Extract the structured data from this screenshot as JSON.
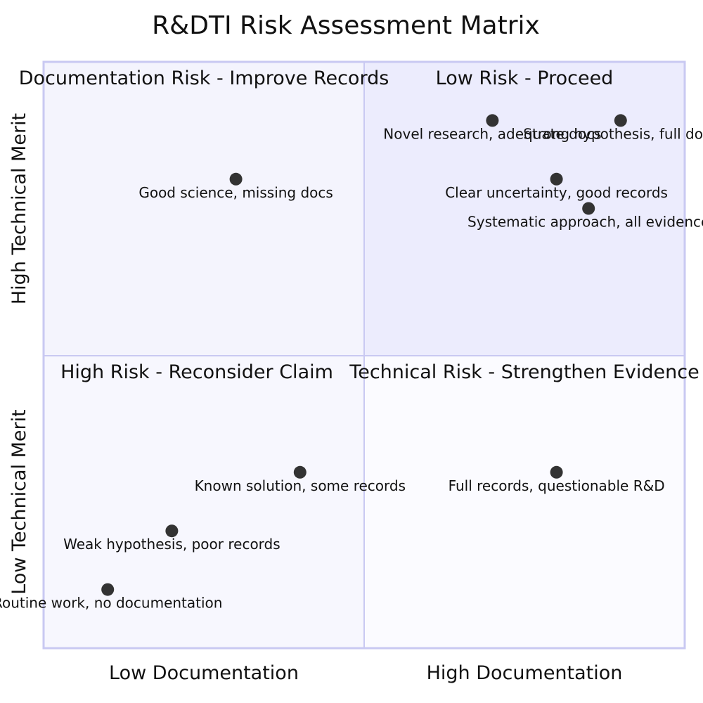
{
  "chart_data": {
    "type": "scatter",
    "title": "R&DTI Risk Assessment Matrix",
    "x_axis": {
      "low_label": "Low Documentation",
      "high_label": "High Documentation",
      "range": [
        0,
        1
      ]
    },
    "y_axis": {
      "low_label": "Low Technical Merit",
      "high_label": "High Technical Merit",
      "range": [
        0,
        1
      ]
    },
    "quadrants": {
      "top_left": {
        "label": "Documentation Risk - Improve Records",
        "color": "#f4f4fd"
      },
      "top_right": {
        "label": "Low Risk - Proceed",
        "color": "#ececfd"
      },
      "bottom_left": {
        "label": "High Risk - Reconsider Claim",
        "color": "#f7f7fe"
      },
      "bottom_right": {
        "label": "Technical Risk - Strengthen Evidence",
        "color": "#fbfbff"
      }
    },
    "border_color": "#c9c9f2",
    "point_color": "#333333",
    "points": [
      {
        "label": "Novel research, adequate docs",
        "x": 0.7,
        "y": 0.9
      },
      {
        "label": "Strong hypothesis, full docs",
        "x": 0.9,
        "y": 0.9
      },
      {
        "label": "Clear uncertainty, good records",
        "x": 0.8,
        "y": 0.8
      },
      {
        "label": "Systematic approach, all evidence",
        "x": 0.85,
        "y": 0.75
      },
      {
        "label": "Good science, missing docs",
        "x": 0.3,
        "y": 0.8
      },
      {
        "label": "Known solution, some records",
        "x": 0.4,
        "y": 0.3
      },
      {
        "label": "Full records, questionable R&D",
        "x": 0.8,
        "y": 0.3
      },
      {
        "label": "Weak hypothesis, poor records",
        "x": 0.2,
        "y": 0.2
      },
      {
        "label": "Routine work, no documentation",
        "x": 0.1,
        "y": 0.1
      }
    ]
  }
}
